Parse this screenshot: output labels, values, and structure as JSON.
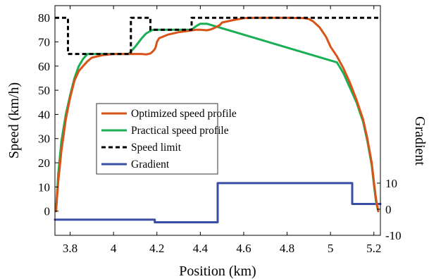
{
  "chart_data": {
    "type": "line",
    "xlabel": "Position (km)",
    "ylabel_left": "Speed (km/h)",
    "ylabel_right": "Gradient",
    "xlim": [
      3.73,
      5.23
    ],
    "ylim_left": [
      -10,
      85
    ],
    "ylim_right": [
      -10,
      78
    ],
    "x_ticks": [
      3.8,
      4,
      4.2,
      4.4,
      4.6,
      4.8,
      5,
      5.2
    ],
    "x_tick_labels": [
      "3.8",
      "4",
      "4.2",
      "4.4",
      "4.6",
      "4.8",
      "5",
      "5.2"
    ],
    "y_left_ticks": [
      0,
      10,
      20,
      30,
      40,
      50,
      60,
      70,
      80
    ],
    "y_left_tick_labels": [
      "0",
      "10",
      "20",
      "30",
      "40",
      "50",
      "60",
      "70",
      "80"
    ],
    "y_right_ticks": [
      -10,
      0,
      10
    ],
    "y_right_tick_labels": [
      "-10",
      "0",
      "10"
    ],
    "grid": false,
    "legend_position": "center-left",
    "series": [
      {
        "name": "Optimized speed profile",
        "color": "#D95319",
        "axis": "left",
        "dash": "",
        "x": [
          3.735,
          3.745,
          3.76,
          3.78,
          3.8,
          3.82,
          3.84,
          3.86,
          3.88,
          3.9,
          3.95,
          4.0,
          4.05,
          4.08,
          4.1,
          4.13,
          4.15,
          4.17,
          4.18,
          4.19,
          4.195,
          4.2,
          4.21,
          4.25,
          4.3,
          4.34,
          4.38,
          4.4,
          4.43,
          4.45,
          4.47,
          4.49,
          4.5,
          4.55,
          4.6,
          4.65,
          4.7,
          4.8,
          4.88,
          4.9,
          4.92,
          4.95,
          4.98,
          5.0,
          5.03,
          5.06,
          5.09,
          5.12,
          5.15,
          5.17,
          5.19,
          5.2,
          5.21,
          5.22
        ],
        "y": [
          0,
          12,
          25,
          38,
          47,
          54,
          58,
          60,
          62,
          63.5,
          64.5,
          65,
          65,
          65,
          65,
          65,
          64.8,
          65.2,
          66,
          67,
          68,
          70,
          71.5,
          73,
          74,
          74.5,
          75,
          75,
          74.8,
          75.2,
          76,
          77,
          78,
          79,
          79.8,
          80,
          80,
          80,
          79.8,
          79.5,
          78.5,
          76,
          72,
          68,
          64,
          59,
          53,
          46,
          38,
          30,
          20,
          12,
          5,
          0
        ]
      },
      {
        "name": "Practical speed profile",
        "color": "#1AAF54",
        "axis": "left",
        "dash": "",
        "x": [
          3.735,
          3.745,
          3.76,
          3.78,
          3.8,
          3.82,
          3.84,
          3.86,
          3.88,
          4.07,
          4.1,
          4.13,
          4.15,
          4.18,
          4.36,
          4.38,
          4.4,
          4.43,
          5.03,
          5.06,
          5.09,
          5.12,
          5.15,
          5.17,
          5.19,
          5.2,
          5.21,
          5.22
        ],
        "y": [
          0,
          15,
          29,
          40,
          48,
          55,
          60,
          63,
          65,
          65,
          68,
          71.5,
          73.5,
          75,
          75,
          76.5,
          77.5,
          77.5,
          61.5,
          57,
          51,
          45,
          37,
          29,
          19,
          11,
          4,
          0
        ]
      },
      {
        "name": "Speed limit",
        "color": "#000000",
        "axis": "left",
        "dash": "6,4",
        "x": [
          3.73,
          3.79,
          3.79,
          4.08,
          4.08,
          4.17,
          4.17,
          4.36,
          4.36,
          5.23
        ],
        "y": [
          80,
          80,
          65,
          65,
          80,
          80,
          75,
          75,
          80,
          80
        ]
      },
      {
        "name": "Gradient",
        "color": "#3A4FA3",
        "axis": "right",
        "dash": "",
        "x": [
          3.73,
          4.19,
          4.19,
          4.48,
          4.48,
          5.1,
          5.1,
          5.23
        ],
        "y": [
          -4,
          -4,
          -5,
          -5,
          10,
          10,
          2,
          2
        ]
      }
    ]
  }
}
